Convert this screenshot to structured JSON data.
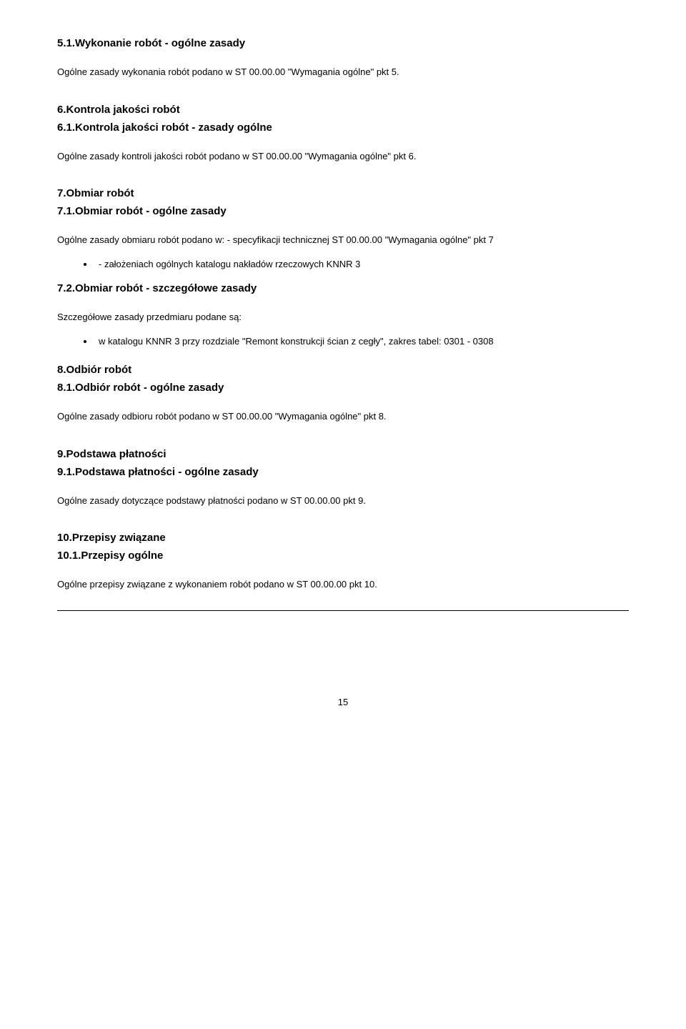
{
  "section5": {
    "h1": "5.1.Wykonanie robót - ogólne zasady",
    "p1": "Ogólne zasady wykonania robót podano w ST 00.00.00 \"Wymagania ogólne\" pkt 5."
  },
  "section6": {
    "h1": "6.Kontrola jakości robót",
    "h2": "6.1.Kontrola jakości robót - zasady ogólne",
    "p1": "Ogólne zasady kontroli jakości robót podano w ST 00.00.00 \"Wymagania ogólne\" pkt 6."
  },
  "section7": {
    "h1": "7.Obmiar robót",
    "h2": "7.1.Obmiar robót - ogólne zasady",
    "p1": "Ogólne zasady obmiaru robót podano w: - specyfikacji technicznej ST 00.00.00 \"Wymagania ogólne\" pkt 7",
    "b1": "- założeniach ogólnych katalogu nakładów rzeczowych KNNR 3",
    "h3": "7.2.Obmiar robót - szczegółowe zasady",
    "p2": "Szczegółowe zasady przedmiaru podane są:",
    "b2": "w katalogu KNNR 3 przy rozdziale \"Remont konstrukcji ścian z cegły\", zakres tabel: 0301 - 0308"
  },
  "section8": {
    "h1": "8.Odbiór robót",
    "h2": "8.1.Odbiór robót - ogólne zasady",
    "p1": "Ogólne zasady odbioru robót podano w ST 00.00.00 \"Wymagania ogólne\" pkt 8."
  },
  "section9": {
    "h1": "9.Podstawa płatności",
    "h2": "9.1.Podstawa płatności - ogólne zasady",
    "p1": "Ogólne zasady dotyczące podstawy płatności podano w ST 00.00.00 pkt 9."
  },
  "section10": {
    "h1": "10.Przepisy związane",
    "h2": "10.1.Przepisy ogólne",
    "p1": "Ogólne przepisy związane z wykonaniem robót podano w ST 00.00.00 pkt 10."
  },
  "pageNumber": "15"
}
